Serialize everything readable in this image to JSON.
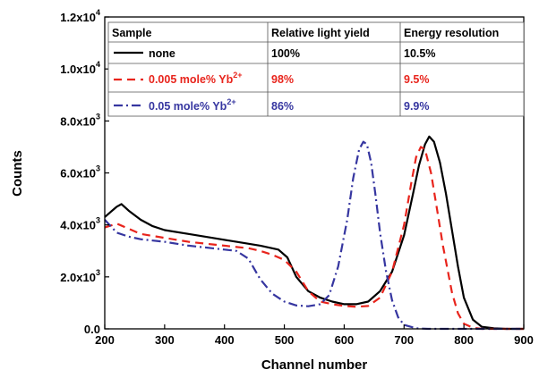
{
  "chart_data": {
    "type": "line",
    "xlabel": "Channel number",
    "ylabel": "Counts",
    "xlim": [
      200,
      900
    ],
    "ylim": [
      0,
      12000
    ],
    "xticks": [
      200,
      300,
      400,
      500,
      600,
      700,
      800,
      900
    ],
    "yticks": [
      {
        "value": 0,
        "mantissa": "0.0",
        "exp": ""
      },
      {
        "value": 2000,
        "mantissa": "2.0x10",
        "exp": "3"
      },
      {
        "value": 4000,
        "mantissa": "4.0x10",
        "exp": "3"
      },
      {
        "value": 6000,
        "mantissa": "6.0x10",
        "exp": "3"
      },
      {
        "value": 8000,
        "mantissa": "8.0x10",
        "exp": "3"
      },
      {
        "value": 10000,
        "mantissa": "1.0x10",
        "exp": "4"
      },
      {
        "value": 12000,
        "mantissa": "1.2x10",
        "exp": "4"
      }
    ],
    "legend_table": {
      "headers": [
        "Sample",
        "Relative light yield",
        "Energy resolution"
      ],
      "rows": [
        {
          "label": "none",
          "superscript": "",
          "light_yield": "100%",
          "resolution": "10.5%",
          "color": "#000000",
          "dash": "solid"
        },
        {
          "label": "0.005 mole% Yb",
          "superscript": "2+",
          "light_yield": "98%",
          "resolution": "9.5%",
          "color": "#e8241c",
          "dash": "dash"
        },
        {
          "label": "0.05 mole% Yb",
          "superscript": "2+",
          "light_yield": "86%",
          "resolution": "9.9%",
          "color": "#3636a0",
          "dash": "dashdot"
        }
      ]
    },
    "series": [
      {
        "color": "#000000",
        "dash": "solid",
        "x": [
          200,
          210,
          220,
          228,
          240,
          260,
          280,
          300,
          340,
          380,
          420,
          460,
          490,
          505,
          520,
          540,
          560,
          580,
          600,
          620,
          640,
          660,
          680,
          700,
          715,
          725,
          735,
          742,
          750,
          760,
          770,
          780,
          790,
          800,
          815,
          830,
          850,
          870,
          900
        ],
        "y": [
          4300,
          4500,
          4700,
          4800,
          4550,
          4200,
          3950,
          3800,
          3650,
          3500,
          3350,
          3200,
          3050,
          2750,
          2000,
          1450,
          1200,
          1050,
          950,
          950,
          1050,
          1450,
          2200,
          3600,
          5200,
          6300,
          7100,
          7400,
          7200,
          6400,
          5200,
          3800,
          2400,
          1200,
          350,
          80,
          20,
          0,
          0
        ]
      },
      {
        "color": "#e8241c",
        "dash": "dash",
        "x": [
          200,
          220,
          240,
          260,
          300,
          340,
          380,
          420,
          440,
          460,
          480,
          500,
          520,
          540,
          560,
          580,
          600,
          620,
          640,
          660,
          680,
          700,
          712,
          720,
          728,
          735,
          745,
          755,
          765,
          780,
          790,
          800,
          815,
          830,
          900
        ],
        "y": [
          3900,
          4050,
          3850,
          3650,
          3500,
          3350,
          3250,
          3150,
          3100,
          3000,
          2850,
          2650,
          2200,
          1450,
          1050,
          950,
          880,
          850,
          880,
          1200,
          2200,
          4000,
          5600,
          6600,
          7000,
          6900,
          6000,
          4600,
          3200,
          1400,
          600,
          200,
          40,
          0,
          0
        ]
      },
      {
        "color": "#3636a0",
        "dash": "dashdot",
        "x": [
          200,
          220,
          240,
          260,
          300,
          340,
          380,
          400,
          420,
          440,
          450,
          460,
          480,
          500,
          520,
          540,
          560,
          575,
          590,
          605,
          615,
          625,
          632,
          638,
          645,
          652,
          660,
          670,
          680,
          690,
          700,
          720,
          740,
          800,
          900
        ],
        "y": [
          4200,
          3700,
          3550,
          3450,
          3350,
          3200,
          3100,
          3050,
          3000,
          2700,
          2300,
          1900,
          1350,
          1050,
          900,
          870,
          950,
          1300,
          2400,
          4200,
          5800,
          6900,
          7200,
          7100,
          6400,
          5200,
          3700,
          2200,
          1100,
          450,
          150,
          20,
          0,
          0,
          0
        ]
      }
    ]
  }
}
